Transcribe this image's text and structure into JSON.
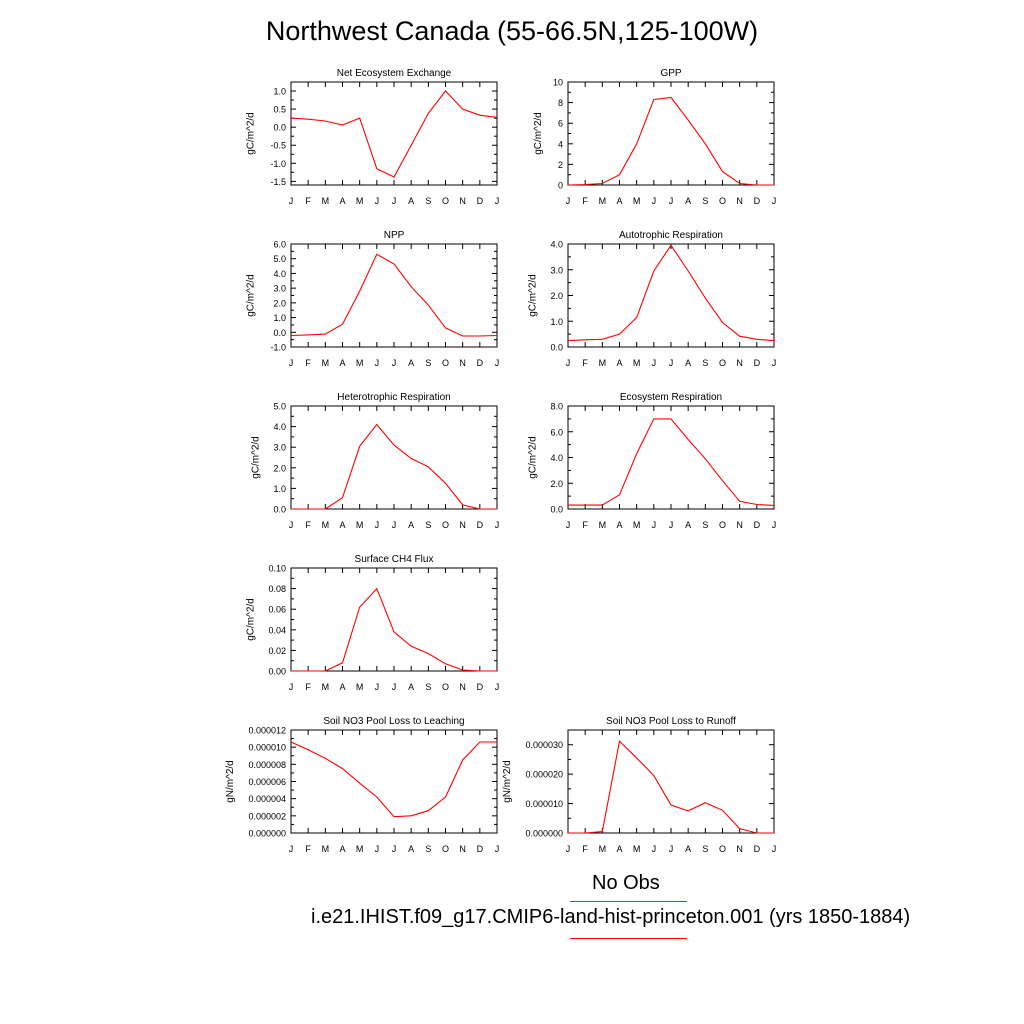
{
  "title": "Northwest Canada (55-66.5N,125-100W)",
  "legend": {
    "obs_label": "No Obs",
    "obs_color": "#3b5bd6",
    "case_label": "i.e21.IHIST.f09_g17.CMIP6-land-hist-princeton.001 (yrs 1850-1884)",
    "case_color": "#ff0000"
  },
  "chart_data": [
    {
      "type": "line",
      "title": "Net Ecosystem Exchange",
      "ylabel": "gC/m^2/d",
      "x": [
        "J",
        "F",
        "M",
        "A",
        "M",
        "J",
        "J",
        "A",
        "S",
        "O",
        "N",
        "D",
        "J"
      ],
      "ylim": [
        -1.6,
        1.25
      ],
      "yticks": [
        "1.0",
        "0.5",
        "0.0",
        "-0.5",
        "-1.0",
        "-1.5"
      ],
      "ytick_values": [
        1.0,
        0.5,
        0.0,
        -0.5,
        -1.0,
        -1.5
      ],
      "series": [
        {
          "values": [
            0.25,
            0.22,
            0.17,
            0.06,
            0.25,
            -1.15,
            -1.38,
            -0.5,
            0.38,
            1.0,
            0.5,
            0.33,
            0.27
          ]
        }
      ]
    },
    {
      "type": "line",
      "title": "GPP",
      "ylabel": "gC/m^2/d",
      "x": [
        "J",
        "F",
        "M",
        "A",
        "M",
        "J",
        "J",
        "A",
        "S",
        "O",
        "N",
        "D",
        "J"
      ],
      "ylim": [
        0,
        10
      ],
      "yticks": [
        "10",
        "8",
        "6",
        "4",
        "2",
        "0"
      ],
      "ytick_values": [
        10,
        8,
        6,
        4,
        2,
        0
      ],
      "series": [
        {
          "values": [
            0.0,
            0.05,
            0.15,
            1.0,
            4.0,
            8.3,
            8.5,
            6.3,
            4.0,
            1.3,
            0.15,
            0.0,
            0.0
          ]
        }
      ]
    },
    {
      "type": "line",
      "title": "NPP",
      "ylabel": "gC/m^2/d",
      "x": [
        "J",
        "F",
        "M",
        "A",
        "M",
        "J",
        "J",
        "A",
        "S",
        "O",
        "N",
        "D",
        "J"
      ],
      "ylim": [
        -1.0,
        6.0
      ],
      "yticks": [
        "6.0",
        "5.0",
        "4.0",
        "3.0",
        "2.0",
        "1.0",
        "0.0",
        "-1.0"
      ],
      "ytick_values": [
        6,
        5,
        4,
        3,
        2,
        1,
        0,
        -1
      ],
      "series": [
        {
          "values": [
            -0.22,
            -0.18,
            -0.12,
            0.55,
            2.8,
            5.3,
            4.65,
            3.1,
            1.85,
            0.3,
            -0.25,
            -0.25,
            -0.22
          ]
        }
      ]
    },
    {
      "type": "line",
      "title": "Autotrophic Respiration",
      "ylabel": "gC/m^2/d",
      "x": [
        "J",
        "F",
        "M",
        "A",
        "M",
        "J",
        "J",
        "A",
        "S",
        "O",
        "N",
        "D",
        "J"
      ],
      "ylim": [
        0,
        4.0
      ],
      "yticks": [
        "4.0",
        "3.0",
        "2.0",
        "1.0",
        "0.0"
      ],
      "ytick_values": [
        4,
        3,
        2,
        1,
        0
      ],
      "series": [
        {
          "values": [
            0.25,
            0.28,
            0.3,
            0.5,
            1.15,
            2.95,
            3.95,
            2.95,
            1.9,
            0.95,
            0.42,
            0.3,
            0.25
          ]
        }
      ]
    },
    {
      "type": "line",
      "title": "Heterotrophic Respiration",
      "ylabel": "gC/m^2/d",
      "x": [
        "J",
        "F",
        "M",
        "A",
        "M",
        "J",
        "J",
        "A",
        "S",
        "O",
        "N",
        "D",
        "J"
      ],
      "ylim": [
        0,
        5.0
      ],
      "yticks": [
        "5.0",
        "4.0",
        "3.0",
        "2.0",
        "1.0",
        "0.0"
      ],
      "ytick_values": [
        5,
        4,
        3,
        2,
        1,
        0
      ],
      "series": [
        {
          "values": [
            0.0,
            0.0,
            0.0,
            0.55,
            3.05,
            4.1,
            3.1,
            2.45,
            2.05,
            1.25,
            0.2,
            0.0,
            0.0
          ]
        }
      ]
    },
    {
      "type": "line",
      "title": "Ecosystem Respiration",
      "ylabel": "gC/m^2/d",
      "x": [
        "J",
        "F",
        "M",
        "A",
        "M",
        "J",
        "J",
        "A",
        "S",
        "O",
        "N",
        "D",
        "J"
      ],
      "ylim": [
        0,
        8.0
      ],
      "yticks": [
        "8.0",
        "6.0",
        "4.0",
        "2.0",
        "0.0"
      ],
      "ytick_values": [
        8,
        6,
        4,
        2,
        0
      ],
      "series": [
        {
          "values": [
            0.3,
            0.3,
            0.3,
            1.1,
            4.3,
            7.0,
            7.0,
            5.4,
            3.9,
            2.2,
            0.6,
            0.35,
            0.28
          ]
        }
      ]
    },
    {
      "type": "line",
      "title": "Surface CH4 Flux",
      "ylabel": "gC/m^2/d",
      "x": [
        "J",
        "F",
        "M",
        "A",
        "M",
        "J",
        "J",
        "A",
        "S",
        "O",
        "N",
        "D",
        "J"
      ],
      "ylim": [
        0,
        0.1
      ],
      "yticks": [
        "0.10",
        "0.08",
        "0.06",
        "0.04",
        "0.02",
        "0.00"
      ],
      "ytick_values": [
        0.1,
        0.08,
        0.06,
        0.04,
        0.02,
        0.0
      ],
      "series": [
        {
          "values": [
            0.0,
            0.0,
            0.0,
            0.008,
            0.062,
            0.08,
            0.038,
            0.024,
            0.017,
            0.007,
            0.001,
            0.0,
            0.0
          ]
        }
      ]
    },
    {
      "type": "line",
      "title": "Soil NO3 Pool Loss to Leaching",
      "ylabel": "gN/m^2/d",
      "x": [
        "J",
        "F",
        "M",
        "A",
        "M",
        "J",
        "J",
        "A",
        "S",
        "O",
        "N",
        "D",
        "J"
      ],
      "ylim": [
        0,
        1.2e-05
      ],
      "yticks": [
        "0.000012",
        "0.000010",
        "0.000008",
        "0.000006",
        "0.000004",
        "0.000002",
        "0.000000"
      ],
      "ytick_values": [
        1.2e-05,
        1e-05,
        8e-06,
        6e-06,
        4e-06,
        2e-06,
        0.0
      ],
      "series": [
        {
          "values": [
            1.06e-05,
            9.7e-06,
            8.7e-06,
            7.5e-06,
            5.8e-06,
            4.2e-06,
            1.9e-06,
            2e-06,
            2.6e-06,
            4.2e-06,
            8.5e-06,
            1.06e-05,
            1.06e-05
          ]
        }
      ]
    },
    {
      "type": "line",
      "title": "Soil NO3 Pool Loss to Runoff",
      "ylabel": "gN/m^2/d",
      "x": [
        "J",
        "F",
        "M",
        "A",
        "M",
        "J",
        "J",
        "A",
        "S",
        "O",
        "N",
        "D",
        "J"
      ],
      "ylim": [
        0,
        3.5e-05
      ],
      "yticks": [
        "0.000030",
        "0.000020",
        "0.000010",
        "0.000000"
      ],
      "ytick_values": [
        3e-05,
        2e-05,
        1e-05,
        0.0
      ],
      "series": [
        {
          "values": [
            0.0,
            0.0,
            5e-07,
            3.12e-05,
            2.55e-05,
            1.95e-05,
            9.5e-06,
            7.5e-06,
            1.03e-05,
            7.7e-06,
            1.5e-06,
            0.0,
            0.0
          ]
        }
      ]
    }
  ]
}
